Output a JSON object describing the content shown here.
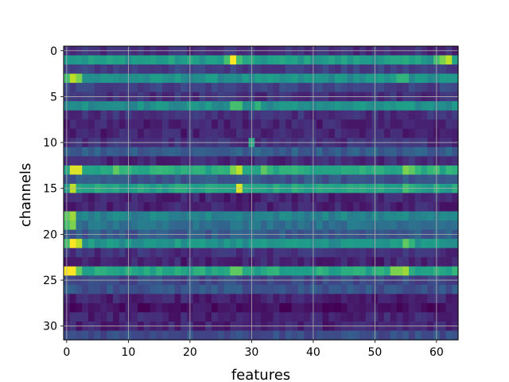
{
  "chart_data": {
    "type": "heatmap",
    "title": "",
    "xlabel": "features",
    "ylabel": "channels",
    "n_cols": 64,
    "n_rows": 32,
    "xlim": [
      -0.5,
      63.5
    ],
    "ylim": [
      31.5,
      -0.5
    ],
    "x_ticks": [
      0,
      10,
      20,
      30,
      40,
      50,
      60
    ],
    "y_ticks": [
      0,
      5,
      10,
      15,
      20,
      25,
      30
    ],
    "grid": true,
    "colormap": "viridis",
    "colors": [
      "#440154",
      "#482878",
      "#3e4989",
      "#31688e",
      "#26828e",
      "#1f9e89",
      "#35b779",
      "#6ece58",
      "#b5de2b",
      "#fde725"
    ],
    "row_base": [
      0.13,
      0.55,
      0.18,
      0.5,
      0.2,
      0.14,
      0.5,
      0.14,
      0.1,
      0.1,
      0.14,
      0.3,
      0.12,
      0.62,
      0.26,
      0.58,
      0.1,
      0.1,
      0.45,
      0.38,
      0.28,
      0.52,
      0.14,
      0.1,
      0.6,
      0.22,
      0.26,
      0.1,
      0.04,
      0.1,
      0.1,
      0.24
    ],
    "highlights": [
      {
        "row": 1,
        "col": 27,
        "v": 1.0
      },
      {
        "row": 1,
        "col": 26,
        "v": 0.7
      },
      {
        "row": 1,
        "col": 28,
        "v": 0.7
      },
      {
        "row": 1,
        "col": 61,
        "v": 0.8
      },
      {
        "row": 1,
        "col": 62,
        "v": 0.9
      },
      {
        "row": 1,
        "col": 60,
        "v": 0.7
      },
      {
        "row": 3,
        "col": 1,
        "v": 0.9
      },
      {
        "row": 3,
        "col": 2,
        "v": 0.8
      },
      {
        "row": 3,
        "col": 0,
        "v": 0.7
      },
      {
        "row": 3,
        "col": 54,
        "v": 0.65
      },
      {
        "row": 3,
        "col": 55,
        "v": 0.65
      },
      {
        "row": 6,
        "col": 27,
        "v": 0.7
      },
      {
        "row": 6,
        "col": 28,
        "v": 0.7
      },
      {
        "row": 6,
        "col": 31,
        "v": 0.65
      },
      {
        "row": 10,
        "col": 30,
        "v": 0.6
      },
      {
        "row": 13,
        "col": 1,
        "v": 0.95
      },
      {
        "row": 13,
        "col": 2,
        "v": 0.95
      },
      {
        "row": 13,
        "col": 8,
        "v": 0.75
      },
      {
        "row": 13,
        "col": 27,
        "v": 0.8
      },
      {
        "row": 13,
        "col": 28,
        "v": 0.9
      },
      {
        "row": 13,
        "col": 32,
        "v": 0.75
      },
      {
        "row": 13,
        "col": 55,
        "v": 0.8
      },
      {
        "row": 13,
        "col": 56,
        "v": 0.75
      },
      {
        "row": 13,
        "col": 60,
        "v": 0.7
      },
      {
        "row": 15,
        "col": 1,
        "v": 0.9
      },
      {
        "row": 15,
        "col": 28,
        "v": 0.95
      },
      {
        "row": 15,
        "col": 55,
        "v": 0.7
      },
      {
        "row": 18,
        "col": 0,
        "v": 0.75
      },
      {
        "row": 18,
        "col": 1,
        "v": 0.85
      },
      {
        "row": 19,
        "col": 0,
        "v": 0.7
      },
      {
        "row": 19,
        "col": 1,
        "v": 0.8
      },
      {
        "row": 21,
        "col": 1,
        "v": 1.0
      },
      {
        "row": 21,
        "col": 2,
        "v": 0.9
      },
      {
        "row": 21,
        "col": 0,
        "v": 0.7
      },
      {
        "row": 21,
        "col": 55,
        "v": 0.75
      },
      {
        "row": 21,
        "col": 56,
        "v": 0.65
      },
      {
        "row": 24,
        "col": 0,
        "v": 1.0
      },
      {
        "row": 24,
        "col": 1,
        "v": 1.0
      },
      {
        "row": 24,
        "col": 2,
        "v": 0.75
      },
      {
        "row": 24,
        "col": 27,
        "v": 0.75
      },
      {
        "row": 24,
        "col": 28,
        "v": 0.75
      },
      {
        "row": 24,
        "col": 53,
        "v": 0.8
      },
      {
        "row": 24,
        "col": 54,
        "v": 0.8
      },
      {
        "row": 24,
        "col": 55,
        "v": 0.85
      }
    ]
  }
}
